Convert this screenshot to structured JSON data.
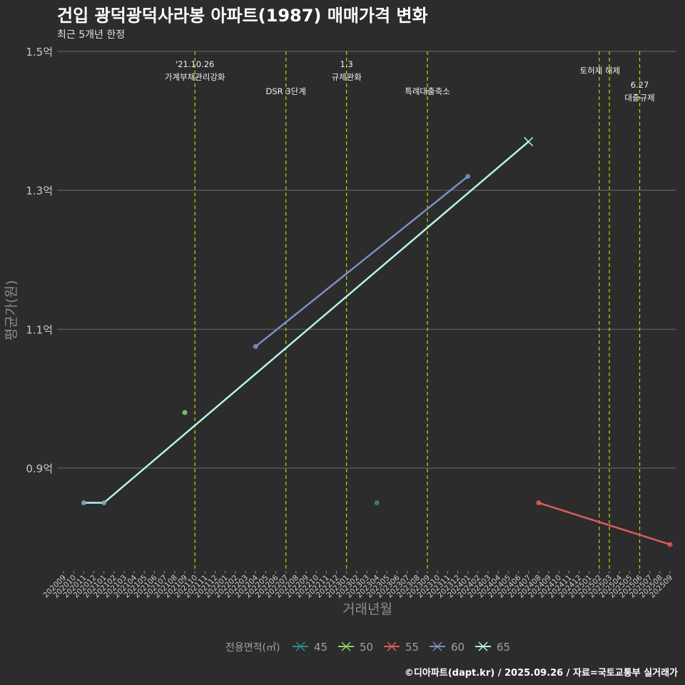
{
  "chart_data": {
    "type": "line",
    "title": "건입 광덕광덕사라봉 아파트(1987) 매매가격 변화",
    "subtitle": "최근 5개년 한정",
    "xlabel": "거래년월",
    "ylabel": "평균가(원)",
    "caption": "©디아파트(dapt.kr) / 2025.09.26 / 자료=국토교통부 실거래가",
    "legend_title": "전용면적(㎡)",
    "legend_position": "bottom",
    "categories": [
      "202009",
      "202010",
      "202011",
      "202012",
      "202101",
      "202102",
      "202103",
      "202104",
      "202105",
      "202106",
      "202107",
      "202108",
      "202109",
      "202110",
      "202111",
      "202112",
      "202201",
      "202202",
      "202203",
      "202204",
      "202205",
      "202206",
      "202207",
      "202208",
      "202209",
      "202210",
      "202211",
      "202212",
      "202301",
      "202302",
      "202303",
      "202304",
      "202305",
      "202306",
      "202307",
      "202308",
      "202309",
      "202310",
      "202311",
      "202312",
      "202401",
      "202402",
      "202403",
      "202404",
      "202405",
      "202406",
      "202407",
      "202408",
      "202409",
      "202410",
      "202411",
      "202412",
      "202501",
      "202502",
      "202503",
      "202504",
      "202505",
      "202506",
      "202507",
      "202508",
      "202509"
    ],
    "yticks": [
      {
        "value": 0.9,
        "label": "0.9억"
      },
      {
        "value": 1.1,
        "label": "1.1억"
      },
      {
        "value": 1.3,
        "label": "1.3억"
      },
      {
        "value": 1.5,
        "label": "1.5억"
      }
    ],
    "ylim": [
      0.77,
      1.51
    ],
    "series": [
      {
        "name": "45",
        "color": "#2f8c8c",
        "points": [
          {
            "x": "202304",
            "y": 0.85
          }
        ]
      },
      {
        "name": "50",
        "color": "#8fd46a",
        "points": [
          {
            "x": "202109",
            "y": 0.98
          }
        ]
      },
      {
        "name": "55",
        "color": "#e05a5a",
        "points": [
          {
            "x": "202408",
            "y": 0.85
          },
          {
            "x": "202509",
            "y": 0.79
          }
        ]
      },
      {
        "name": "60",
        "color": "#7b8fc7",
        "points": [
          {
            "x": "202204",
            "y": 1.075
          },
          {
            "x": "202401",
            "y": 1.32
          }
        ]
      },
      {
        "name": "65",
        "color": "#b6f2ec",
        "points": [
          {
            "x": "202011",
            "y": 0.85
          },
          {
            "x": "202101",
            "y": 0.85
          },
          {
            "x": "202407",
            "y": 1.37
          }
        ]
      }
    ],
    "events": [
      {
        "x": "202110",
        "label": "'21.10.26\n가계부채관리강화",
        "row": "top"
      },
      {
        "x": "202207",
        "label": "DSR 3단계",
        "row": "low"
      },
      {
        "x": "202301",
        "label": "1.3\n규제완화",
        "row": "top"
      },
      {
        "x": "202309",
        "label": "특례대출축소",
        "row": "low"
      },
      {
        "x": "202502",
        "label": "토허제 해제",
        "row": "mid"
      },
      {
        "x": "202503",
        "label": "",
        "row": "mid"
      },
      {
        "x": "202506",
        "label": "6.27\n대출규제",
        "row": "right"
      }
    ]
  }
}
